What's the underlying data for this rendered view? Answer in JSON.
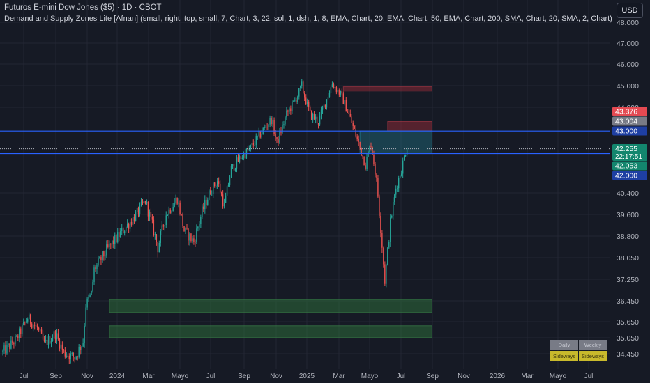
{
  "header": {
    "title": "Futuros E-mini Dow Jones ($5) · 1D · CBOT",
    "indicator": "Demand and Supply Zones Lite [Afnan] (small, right, top, small, 7, Chart, 3, 22, sol, 1, dsh, 1, 8, EMA, Chart, 20, EMA, Chart, 50, EMA, Chart, 200, SMA, Chart, 20, SMA, 2, Chart)",
    "currency": "USD"
  },
  "trend_table": {
    "headers": [
      "Daily",
      "Weekly"
    ],
    "values": [
      "Sideways",
      "Sideways"
    ]
  },
  "chart_data": {
    "type": "candlestick",
    "x_tick_labels": [
      "Jul",
      "Sep",
      "Nov",
      "2024",
      "Mar",
      "Mayo",
      "Jul",
      "Sep",
      "Nov",
      "2025",
      "Mar",
      "Mayo",
      "Jul",
      "Sep",
      "Nov",
      "2026",
      "Mar",
      "Mayo",
      "Jul"
    ],
    "y_tick_labels": [
      "48.000",
      "47.000",
      "46.000",
      "45.000",
      "44.000",
      "40.400",
      "39.600",
      "38.800",
      "38.050",
      "37.250",
      "36.450",
      "35.650",
      "35.050",
      "34.450"
    ],
    "y_tick_values": [
      48000,
      47000,
      46000,
      45000,
      44000,
      40400,
      39600,
      38800,
      38050,
      37250,
      36450,
      35650,
      35050,
      34450
    ],
    "ylim": [
      34100,
      48300
    ],
    "price_path": [
      [
        0,
        34500
      ],
      [
        10,
        35000
      ],
      [
        18,
        35800
      ],
      [
        25,
        35400
      ],
      [
        30,
        34800
      ],
      [
        38,
        35200
      ],
      [
        44,
        34500
      ],
      [
        52,
        34300
      ],
      [
        58,
        34900
      ],
      [
        60,
        36300
      ],
      [
        64,
        36700
      ],
      [
        66,
        37600
      ],
      [
        75,
        38300
      ],
      [
        85,
        38900
      ],
      [
        95,
        39500
      ],
      [
        103,
        40100
      ],
      [
        108,
        39200
      ],
      [
        112,
        38400
      ],
      [
        118,
        39600
      ],
      [
        126,
        40200
      ],
      [
        131,
        39000
      ],
      [
        138,
        38600
      ],
      [
        144,
        39700
      ],
      [
        150,
        40500
      ],
      [
        155,
        40900
      ],
      [
        160,
        39900
      ],
      [
        165,
        41400
      ],
      [
        172,
        41900
      ],
      [
        178,
        42200
      ],
      [
        184,
        42700
      ],
      [
        190,
        43200
      ],
      [
        194,
        43500
      ],
      [
        198,
        42500
      ],
      [
        205,
        43700
      ],
      [
        212,
        44400
      ],
      [
        216,
        45000
      ],
      [
        218,
        44500
      ],
      [
        222,
        43700
      ],
      [
        228,
        43400
      ],
      [
        233,
        44200
      ],
      [
        238,
        45100
      ],
      [
        244,
        44600
      ],
      [
        250,
        43700
      ],
      [
        254,
        43000
      ],
      [
        258,
        42300
      ],
      [
        262,
        41600
      ],
      [
        266,
        42500
      ],
      [
        270,
        40900
      ],
      [
        274,
        38500
      ],
      [
        276,
        37200
      ],
      [
        280,
        39300
      ],
      [
        284,
        40600
      ],
      [
        288,
        41400
      ],
      [
        292,
        42400
      ]
    ],
    "zones": [
      {
        "kind": "supply",
        "from": 44950,
        "to": 44750,
        "x_start": 246,
        "x_end": 310
      },
      {
        "kind": "supply",
        "from": 43400,
        "to": 43004,
        "x_start": 278,
        "x_end": 310
      },
      {
        "kind": "supply-light",
        "from": 43004,
        "to": 42053,
        "x_start": 258,
        "x_end": 310
      },
      {
        "kind": "demand",
        "from": 36500,
        "to": 36000,
        "x_start": 77,
        "x_end": 310
      },
      {
        "kind": "demand",
        "from": 35500,
        "to": 35050,
        "x_start": 77,
        "x_end": 310
      }
    ],
    "horizontal_lines": [
      {
        "value": 43000,
        "color": "#2962ff",
        "style": "solid"
      },
      {
        "value": 42053,
        "color": "#2962ff",
        "style": "solid"
      },
      {
        "value": 42255,
        "color": "#b2b5be",
        "style": "dotted"
      }
    ],
    "price_labels": [
      {
        "text": "43.376",
        "value": 43376,
        "bg": "#e44a52"
      },
      {
        "text": "43.004",
        "value": 43004,
        "bg": "#787b86"
      },
      {
        "text": "43.000",
        "value": 43000,
        "bg": "#1e3fa3"
      },
      {
        "text": "42.255",
        "value": 42255,
        "bg": "#13866e",
        "sub": "22:17:51"
      },
      {
        "text": "42.053",
        "value": 42053,
        "bg": "#13866e"
      },
      {
        "text": "42.000",
        "value": 42000,
        "bg": "#1e3fa3"
      }
    ],
    "colors": {
      "up": "#26a69a",
      "down": "#ef5350",
      "background": "#161a25",
      "grid": "#232633"
    }
  }
}
